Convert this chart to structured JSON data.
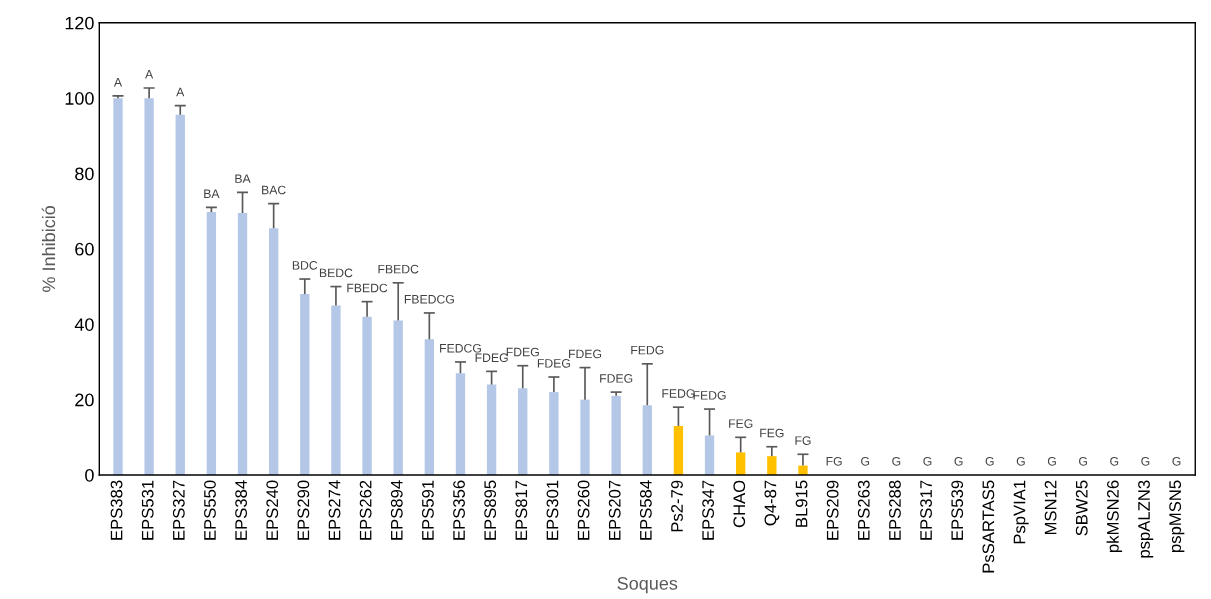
{
  "chart_data": {
    "type": "bar",
    "xlabel": "Soques",
    "ylabel": "% Inhibició",
    "categories": [
      "EPS383",
      "EPS531",
      "EPS327",
      "EPS550",
      "EPS384",
      "EPS240",
      "EPS290",
      "EPS274",
      "EPS262",
      "EPS894",
      "EPS591",
      "EPS356",
      "EPS895",
      "EPS817",
      "EPS301",
      "EPS260",
      "EPS207",
      "EPS584",
      "Ps2-79",
      "EPS347",
      "CHAO",
      "Q4-87",
      "BL915",
      "EPS209",
      "EPS263",
      "EPS288",
      "EPS317",
      "EPS539",
      "PsSARTAS5",
      "PspVIA1",
      "MSN12",
      "SBW25",
      "pkMSN26",
      "pspALZN3",
      "pspMSN5"
    ],
    "values": [
      100,
      100,
      95.6,
      69.8,
      69.5,
      65.5,
      48,
      45,
      42,
      41,
      36,
      27,
      24,
      23,
      22,
      20,
      21,
      18.5,
      13,
      10.5,
      6,
      5,
      2.5,
      0,
      0,
      0,
      0,
      0,
      0,
      0,
      0,
      0,
      0,
      0,
      0
    ],
    "errors": [
      [
        100,
        100.6
      ],
      [
        100,
        102.7
      ],
      [
        95.6,
        98
      ],
      [
        69.8,
        71
      ],
      [
        69.5,
        75
      ],
      [
        65.5,
        72
      ],
      [
        48,
        52
      ],
      [
        45,
        50
      ],
      [
        42,
        46
      ],
      [
        41,
        51
      ],
      [
        36,
        43
      ],
      [
        27,
        30
      ],
      [
        24,
        27.5
      ],
      [
        23,
        29
      ],
      [
        22,
        26
      ],
      [
        20,
        28.5
      ],
      [
        21,
        22
      ],
      [
        18.5,
        29.5
      ],
      [
        13,
        18
      ],
      [
        10.5,
        17.5
      ],
      [
        6,
        10
      ],
      [
        5,
        7.5
      ],
      [
        2.5,
        5.5
      ],
      null,
      null,
      null,
      null,
      null,
      null,
      null,
      null,
      null,
      null,
      null,
      null
    ],
    "colors": [
      "#b4c7e7",
      "#b4c7e7",
      "#b4c7e7",
      "#b4c7e7",
      "#b4c7e7",
      "#b4c7e7",
      "#b4c7e7",
      "#b4c7e7",
      "#b4c7e7",
      "#b4c7e7",
      "#b4c7e7",
      "#b4c7e7",
      "#b4c7e7",
      "#b4c7e7",
      "#b4c7e7",
      "#b4c7e7",
      "#b4c7e7",
      "#b4c7e7",
      "#ffc000",
      "#b4c7e7",
      "#ffc000",
      "#ffc000",
      "#ffc000",
      "#b4c7e7",
      "#b4c7e7",
      "#b4c7e7",
      "#b4c7e7",
      "#b4c7e7",
      "#b4c7e7",
      "#b4c7e7",
      "#b4c7e7",
      "#b4c7e7",
      "#b4c7e7",
      "#b4c7e7",
      "#b4c7e7"
    ],
    "ylim": [
      0,
      120
    ],
    "yticks": [
      0,
      20,
      40,
      60,
      80,
      100,
      120
    ],
    "grid": false,
    "legend": false,
    "annotations": [
      {
        "text": "A",
        "x": "EPS383",
        "y": 100.6
      },
      {
        "text": "A",
        "x": "EPS531",
        "y": 102.7
      },
      {
        "text": "A",
        "x": "EPS327",
        "y": 98
      },
      {
        "text": "BA",
        "x": "EPS550",
        "y": 71
      },
      {
        "text": "BA",
        "x": "EPS384",
        "y": 75
      },
      {
        "text": "BAC",
        "x": "EPS240",
        "y": 72
      },
      {
        "text": "BDC",
        "x": "EPS290",
        "y": 52
      },
      {
        "text": "BEDC",
        "x": "EPS274",
        "y": 50
      },
      {
        "text": "FBEDC",
        "x": "EPS262",
        "y": 46
      },
      {
        "text": "FBEDC",
        "x": "EPS894",
        "y": 51
      },
      {
        "text": "FBEDCG",
        "x": "EPS591",
        "y": 43
      },
      {
        "text": "FEDCG",
        "x": "EPS356",
        "y": 30
      },
      {
        "text": "FDEG",
        "x": "EPS895",
        "y": 27.5
      },
      {
        "text": "FDEG",
        "x": "EPS817",
        "y": 29
      },
      {
        "text": "FDEG",
        "x": "EPS301",
        "y": 26
      },
      {
        "text": "FDEG",
        "x": "EPS260",
        "y": 28.5
      },
      {
        "text": "FDEG",
        "x": "EPS207",
        "y": 22
      },
      {
        "text": "FEDG",
        "x": "EPS584",
        "y": 29.5
      },
      {
        "text": "FEDG",
        "x": "Ps2-79",
        "y": 18
      },
      {
        "text": "FEDG",
        "x": "EPS347",
        "y": 17.5
      },
      {
        "text": "FEG",
        "x": "CHAO",
        "y": 10
      },
      {
        "text": "FEG",
        "x": "Q4-87",
        "y": 7.5
      },
      {
        "text": "FG",
        "x": "BL915",
        "y": 5.5
      },
      {
        "text": "FG",
        "x": "EPS209",
        "y": 0
      },
      {
        "text": "G",
        "x": "EPS263",
        "y": 0
      },
      {
        "text": "G",
        "x": "EPS288",
        "y": 0
      },
      {
        "text": "G",
        "x": "EPS317",
        "y": 0
      },
      {
        "text": "G",
        "x": "EPS539",
        "y": 0
      },
      {
        "text": "G",
        "x": "PsSARTAS5",
        "y": 0
      },
      {
        "text": "G",
        "x": "PspVIA1",
        "y": 0
      },
      {
        "text": "G",
        "x": "MSN12",
        "y": 0
      },
      {
        "text": "G",
        "x": "SBW25",
        "y": 0
      },
      {
        "text": "G",
        "x": "pkMSN26",
        "y": 0
      },
      {
        "text": "G",
        "x": "pspALZN3",
        "y": 0
      },
      {
        "text": "G",
        "x": "pspMSN5",
        "y": 0
      }
    ]
  }
}
